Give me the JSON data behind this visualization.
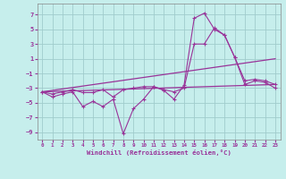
{
  "bg_color": "#c6eeec",
  "grid_color": "#a0cccc",
  "line_color": "#993399",
  "xlabel": "Windchill (Refroidissement éolien,°C)",
  "xlim": [
    -0.5,
    23.5
  ],
  "ylim": [
    -10,
    8.5
  ],
  "yticks": [
    -9,
    -7,
    -5,
    -3,
    -1,
    1,
    3,
    5,
    7
  ],
  "xticks": [
    0,
    1,
    2,
    3,
    4,
    5,
    6,
    7,
    8,
    9,
    10,
    11,
    12,
    13,
    14,
    15,
    16,
    17,
    18,
    19,
    20,
    21,
    22,
    23
  ],
  "series1_x": [
    0,
    1,
    2,
    3,
    4,
    5,
    6,
    7,
    8,
    9,
    10,
    11,
    12,
    13,
    14,
    15,
    16,
    17,
    18,
    19,
    20,
    21,
    22,
    23
  ],
  "series1_y": [
    -3.5,
    -4.2,
    -3.8,
    -3.5,
    -5.5,
    -4.8,
    -5.5,
    -4.5,
    -9.2,
    -5.8,
    -4.5,
    -2.8,
    -3.3,
    -4.5,
    -2.6,
    6.5,
    7.2,
    5.0,
    4.2,
    1.2,
    -2.5,
    -2.0,
    -2.2,
    -3.0
  ],
  "series2_x": [
    0,
    1,
    2,
    3,
    4,
    5,
    6,
    7,
    8,
    9,
    10,
    11,
    12,
    13,
    14,
    15,
    16,
    17,
    18,
    19,
    20,
    21,
    22,
    23
  ],
  "series2_y": [
    -3.5,
    -3.8,
    -3.5,
    -3.2,
    -3.6,
    -3.6,
    -3.2,
    -4.2,
    -3.2,
    -3.0,
    -2.8,
    -2.8,
    -3.2,
    -3.5,
    -3.0,
    3.0,
    3.0,
    5.2,
    4.2,
    1.2,
    -2.0,
    -1.8,
    -2.0,
    -2.5
  ],
  "series3_x": [
    0,
    23
  ],
  "series3_y": [
    -3.5,
    1.0
  ],
  "series4_x": [
    0,
    23
  ],
  "series4_y": [
    -3.5,
    -2.5
  ]
}
